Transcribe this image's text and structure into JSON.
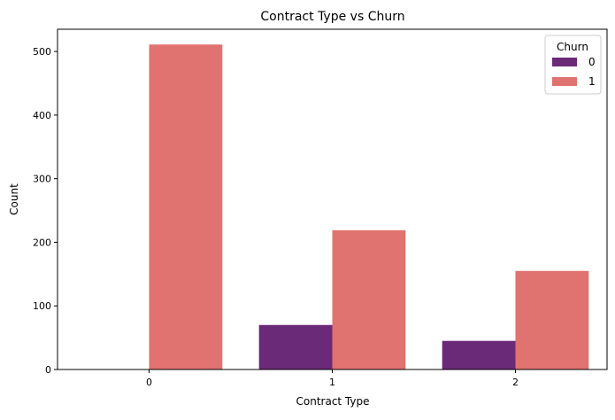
{
  "chart_data": {
    "type": "bar",
    "title": "Contract Type vs Churn",
    "xlabel": "Contract Type",
    "ylabel": "Count",
    "categories": [
      "0",
      "1",
      "2"
    ],
    "series": [
      {
        "name": "0",
        "color": "#6b2a77",
        "values": [
          0,
          70,
          45
        ]
      },
      {
        "name": "1",
        "color": "#e07270",
        "values": [
          511,
          219,
          155
        ]
      }
    ],
    "ylim": [
      0,
      535
    ],
    "yticks": [
      0,
      100,
      200,
      300,
      400,
      500
    ],
    "legend": {
      "title": "Churn",
      "position": "top-right"
    },
    "grid": false
  }
}
